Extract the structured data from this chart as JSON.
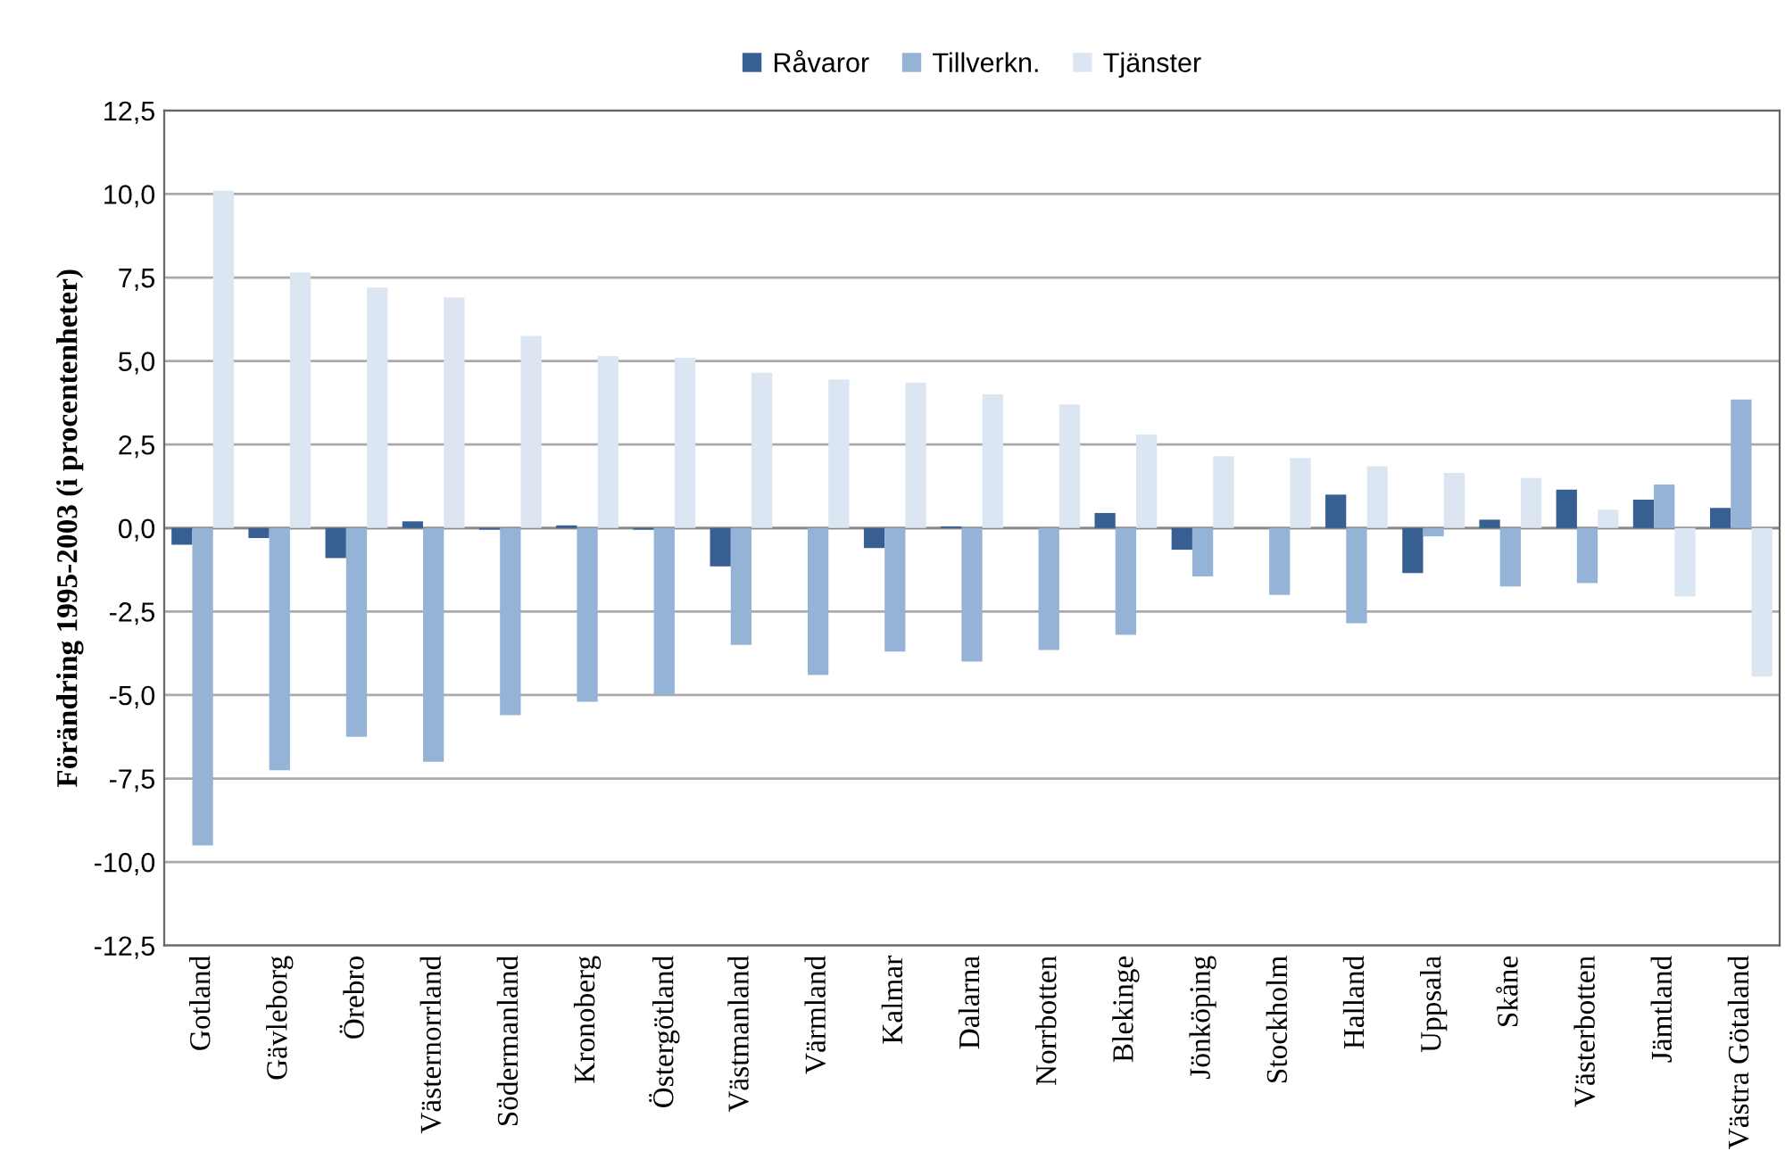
{
  "chart_data": {
    "type": "bar",
    "ylabel": "Förändring 1995-2003 (i procentenheter)",
    "categories": [
      "Gotland",
      "Gävleborg",
      "Örebro",
      "Västernorrland",
      "Södermanland",
      "Kronoberg",
      "Östergötland",
      "Västmanland",
      "Värmland",
      "Kalmar",
      "Dalarna",
      "Norrbotten",
      "Blekinge",
      "Jönköping",
      "Stockholm",
      "Halland",
      "Uppsala",
      "Skåne",
      "Västerbotten",
      "Jämtland",
      "Västra Götaland"
    ],
    "series": [
      {
        "name": "Råvaror",
        "color": "#375f92",
        "values": [
          -0.5,
          -0.3,
          -0.9,
          0.2,
          -0.05,
          0.08,
          -0.05,
          -1.15,
          0,
          -0.6,
          0.05,
          0,
          0.45,
          -0.65,
          0,
          1.0,
          -1.35,
          0.25,
          1.15,
          0.85,
          0.6
        ]
      },
      {
        "name": "Tillverkn.",
        "color": "#95b3d7",
        "values": [
          -9.5,
          -7.25,
          -6.25,
          -7.0,
          -5.6,
          -5.2,
          -5.0,
          -3.5,
          -4.4,
          -3.7,
          -4.0,
          -3.65,
          -3.2,
          -1.45,
          -2.0,
          -2.85,
          -0.25,
          -1.75,
          -1.65,
          1.3,
          3.85
        ]
      },
      {
        "name": "Tjänster",
        "color": "#dce6f2",
        "values": [
          10.1,
          7.65,
          7.2,
          6.9,
          5.75,
          5.15,
          5.1,
          4.65,
          4.45,
          4.35,
          4.0,
          3.7,
          2.8,
          2.15,
          2.1,
          1.85,
          1.65,
          1.5,
          0.55,
          -2.05,
          -4.45
        ]
      }
    ],
    "ylim": [
      -12.5,
      12.5
    ],
    "yticks": [
      {
        "value": -12.5,
        "label": "-12,5"
      },
      {
        "value": -10,
        "label": "-10,0"
      },
      {
        "value": -7.5,
        "label": "-7,5"
      },
      {
        "value": -5,
        "label": "-5,0"
      },
      {
        "value": -2.5,
        "label": "-2,5"
      },
      {
        "value": 0,
        "label": "0,0"
      },
      {
        "value": 2.5,
        "label": "2,5"
      },
      {
        "value": 5,
        "label": "5,0"
      },
      {
        "value": 7.5,
        "label": "7,5"
      },
      {
        "value": 10,
        "label": "10,0"
      },
      {
        "value": 12.5,
        "label": "12,5"
      }
    ],
    "grid": "y",
    "legend": "top"
  }
}
